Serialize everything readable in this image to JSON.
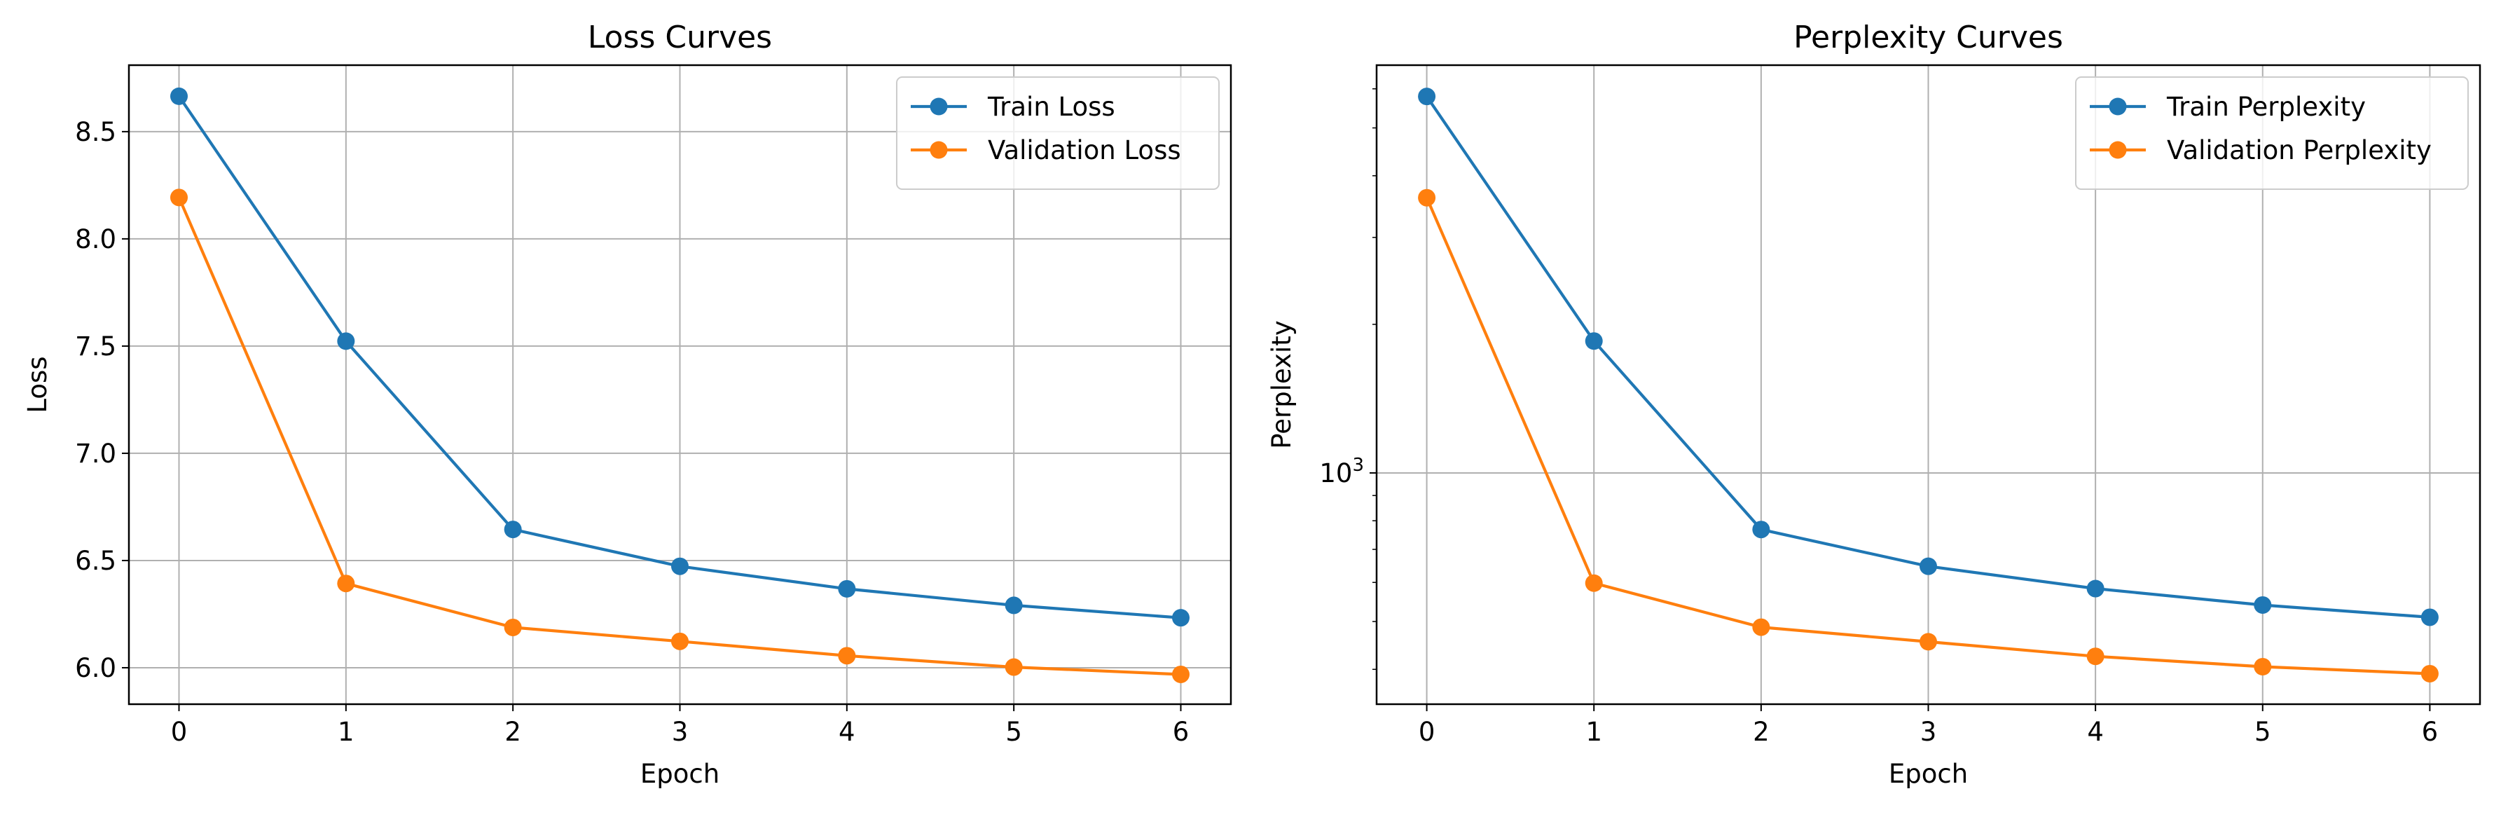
{
  "chart_data": [
    {
      "type": "line",
      "title": "Loss Curves",
      "xlabel": "Epoch",
      "ylabel": "Loss",
      "x": [
        0,
        1,
        2,
        3,
        4,
        5,
        6
      ],
      "xlim": [
        -0.3,
        6.3
      ],
      "ylim": [
        5.83,
        8.81
      ],
      "xticks": [
        0,
        1,
        2,
        3,
        4,
        5,
        6
      ],
      "yticks": [
        6.0,
        6.5,
        7.0,
        7.5,
        8.0,
        8.5
      ],
      "ytick_labels": [
        "6.0",
        "6.5",
        "7.0",
        "7.5",
        "8.0",
        "8.5"
      ],
      "yscale": "linear",
      "grid": true,
      "legend_position": "upper right",
      "series": [
        {
          "name": "Train Loss",
          "color": "#1f77b4",
          "marker": "circle",
          "values": [
            8.665,
            7.523,
            6.645,
            6.473,
            6.368,
            6.291,
            6.233
          ]
        },
        {
          "name": "Validation Loss",
          "color": "#ff7f0e",
          "marker": "circle",
          "values": [
            8.193,
            6.393,
            6.188,
            6.123,
            6.056,
            6.003,
            5.969
          ]
        }
      ]
    },
    {
      "type": "line",
      "title": "Perplexity Curves",
      "xlabel": "Epoch",
      "ylabel": "Perplexity",
      "x": [
        0,
        1,
        2,
        3,
        4,
        5,
        6
      ],
      "xlim": [
        -0.3,
        6.3
      ],
      "ylim": [
        340,
        6700
      ],
      "xticks": [
        0,
        1,
        2,
        3,
        4,
        5,
        6
      ],
      "yticks": [
        1000
      ],
      "ytick_labels": [
        "10^3"
      ],
      "yscale": "log",
      "grid": true,
      "legend_position": "upper right",
      "series": [
        {
          "name": "Train Perplexity",
          "color": "#1f77b4",
          "marker": "circle",
          "values": [
            5790,
            1850,
            768,
            647,
            583,
            540,
            510
          ]
        },
        {
          "name": "Validation Perplexity",
          "color": "#ff7f0e",
          "marker": "circle",
          "values": [
            3610,
            598,
            487,
            455,
            425,
            405,
            392
          ]
        }
      ]
    }
  ]
}
